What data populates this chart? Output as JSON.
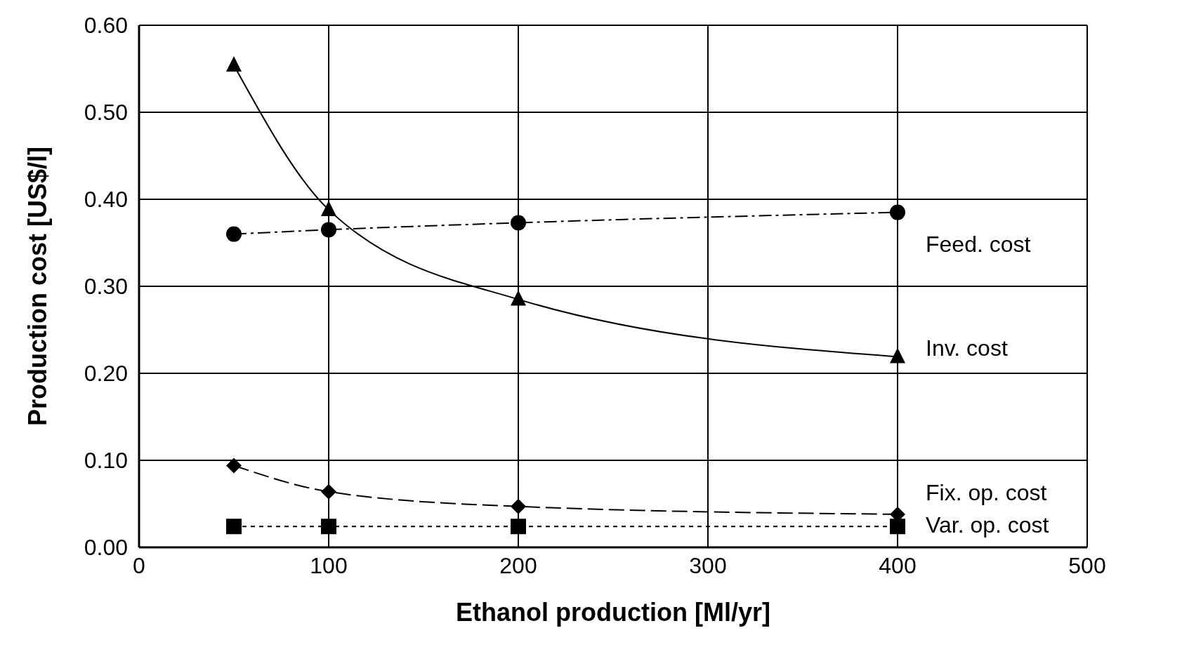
{
  "chart_data": {
    "type": "line",
    "xlabel": "Ethanol production [Ml/yr]",
    "ylabel": "Production cost [US$/l]",
    "x": [
      50,
      100,
      200,
      400
    ],
    "series": [
      {
        "name": "Feed. cost",
        "color": "#000000",
        "marker": "circle",
        "line_style": "dashdot",
        "values": [
          0.36,
          0.365,
          0.373,
          0.385
        ]
      },
      {
        "name": "Inv. cost",
        "color": "#000000",
        "marker": "triangle",
        "line_style": "solid",
        "values": [
          0.554,
          0.388,
          0.285,
          0.219
        ]
      },
      {
        "name": "Fix. op. cost",
        "color": "#000000",
        "marker": "diamond",
        "line_style": "dashed",
        "values": [
          0.094,
          0.064,
          0.047,
          0.038
        ]
      },
      {
        "name": "Var. op. cost",
        "color": "#000000",
        "marker": "square",
        "line_style": "dotted",
        "values": [
          0.024,
          0.024,
          0.024,
          0.024
        ]
      }
    ],
    "xlim": [
      0,
      500
    ],
    "xticks": [
      0,
      100,
      200,
      300,
      400,
      500
    ],
    "ylim": [
      0,
      0.6
    ],
    "yticks": [
      {
        "value": 0,
        "label": "0.00"
      },
      {
        "value": 0.1,
        "label": "0.10"
      },
      {
        "value": 0.2,
        "label": "0.20"
      },
      {
        "value": 0.3,
        "label": "0.30"
      },
      {
        "value": 0.4,
        "label": "0.40"
      },
      {
        "value": 0.5,
        "label": "0.50"
      },
      {
        "value": 0.6,
        "label": "0.60"
      }
    ],
    "grid": true
  }
}
